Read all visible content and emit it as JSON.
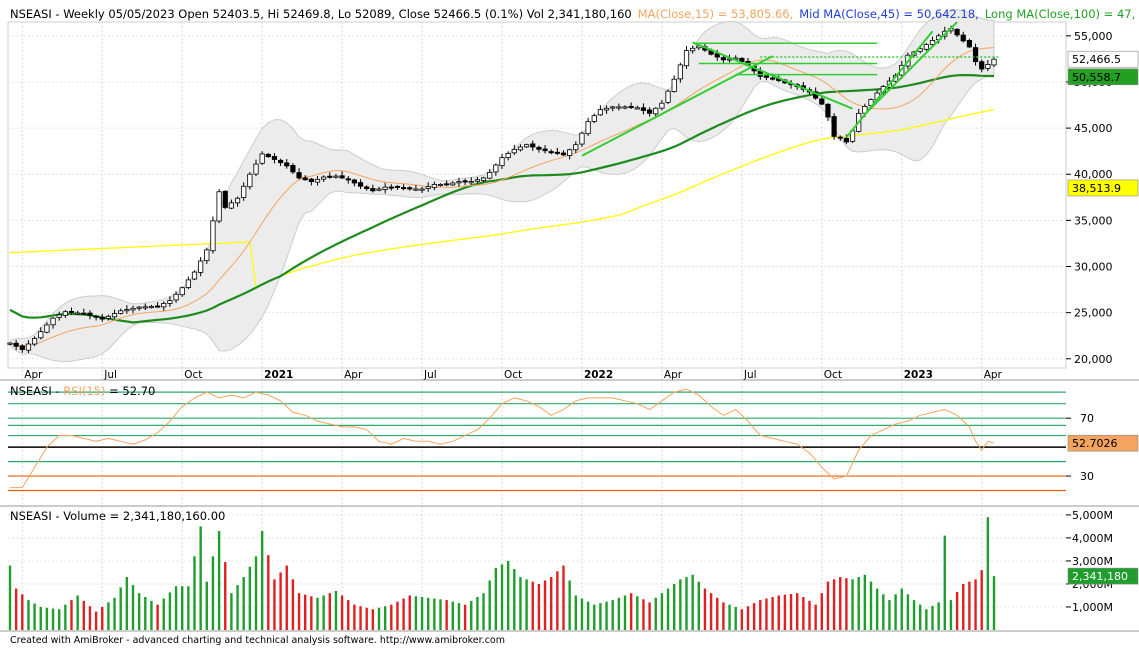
{
  "chart_data": {
    "type": "candlestick",
    "symbol": "NSEASI",
    "price_panel": {
      "title": {
        "text": "NSEASI - Weekly 05/05/2023 Open 52403.5, Hi 52469.8, Lo 52089, Close 52466.5 (0.1%) Vol 2,341,180,160",
        "ma15": "MA(Close,15) = 53,805.66,",
        "ma45": "Mid MA(Close,45) = 50,642.18,",
        "ma100": "Long MA(Close,100) = 47,"
      },
      "ylim": [
        19000,
        56500
      ],
      "y_ticks": [
        20000,
        25000,
        30000,
        35000,
        40000,
        45000,
        50000,
        55000
      ],
      "y_tick_labels": [
        "20,000",
        "25,000",
        "30,000",
        "35,000",
        "40,000",
        "45,000",
        "50,000",
        "55,000"
      ],
      "value_tags": [
        {
          "label": "52,466.5",
          "value": 52466.5,
          "color": "#ffffff",
          "text_color": "#000000"
        },
        {
          "label": "50,558.7",
          "value": 50558.7,
          "color": "#23a023",
          "text_color": "#000000"
        },
        {
          "label": "38,513.9",
          "value": 38513.9,
          "color": "#ffff00",
          "text_color": "#000000"
        }
      ]
    },
    "x_labels": [
      {
        "week": 2,
        "label": "Apr",
        "bold": false
      },
      {
        "week": 15,
        "label": "Jul",
        "bold": false
      },
      {
        "week": 28,
        "label": "Oct",
        "bold": false
      },
      {
        "week": 41,
        "label": "2021",
        "bold": true
      },
      {
        "week": 54,
        "label": "Apr",
        "bold": false
      },
      {
        "week": 67,
        "label": "Jul",
        "bold": false
      },
      {
        "week": 80,
        "label": "Oct",
        "bold": false
      },
      {
        "week": 93,
        "label": "2022",
        "bold": true
      },
      {
        "week": 106,
        "label": "Apr",
        "bold": false
      },
      {
        "week": 119,
        "label": "Jul",
        "bold": false
      },
      {
        "week": 132,
        "label": "Oct",
        "bold": false
      },
      {
        "week": 145,
        "label": "2023",
        "bold": true
      },
      {
        "week": 158,
        "label": "Apr",
        "bold": false
      }
    ],
    "close_anchors": [
      [
        0,
        21700
      ],
      [
        2,
        21000
      ],
      [
        4,
        22200
      ],
      [
        7,
        24400
      ],
      [
        9,
        25100
      ],
      [
        12,
        24900
      ],
      [
        15,
        24300
      ],
      [
        18,
        25200
      ],
      [
        21,
        25600
      ],
      [
        24,
        25700
      ],
      [
        26,
        26300
      ],
      [
        28,
        27700
      ],
      [
        30,
        29400
      ],
      [
        32,
        31800
      ],
      [
        34,
        38100
      ],
      [
        35,
        36400
      ],
      [
        37,
        37400
      ],
      [
        39,
        40000
      ],
      [
        41,
        42200
      ],
      [
        43,
        41600
      ],
      [
        45,
        40900
      ],
      [
        47,
        39600
      ],
      [
        49,
        39200
      ],
      [
        51,
        39700
      ],
      [
        53,
        39800
      ],
      [
        55,
        39400
      ],
      [
        57,
        38700
      ],
      [
        59,
        38200
      ],
      [
        61,
        38600
      ],
      [
        63,
        38600
      ],
      [
        65,
        38400
      ],
      [
        67,
        38400
      ],
      [
        69,
        38900
      ],
      [
        71,
        38900
      ],
      [
        73,
        39200
      ],
      [
        75,
        39200
      ],
      [
        77,
        39600
      ],
      [
        78,
        40200
      ],
      [
        80,
        41800
      ],
      [
        82,
        42700
      ],
      [
        84,
        43200
      ],
      [
        86,
        42700
      ],
      [
        88,
        42400
      ],
      [
        90,
        42100
      ],
      [
        92,
        43200
      ],
      [
        94,
        45700
      ],
      [
        96,
        47000
      ],
      [
        98,
        47300
      ],
      [
        100,
        47300
      ],
      [
        102,
        47200
      ],
      [
        104,
        46600
      ],
      [
        106,
        47700
      ],
      [
        108,
        50300
      ],
      [
        110,
        53400
      ],
      [
        112,
        53900
      ],
      [
        114,
        53000
      ],
      [
        116,
        52400
      ],
      [
        118,
        52600
      ],
      [
        120,
        51800
      ],
      [
        122,
        50600
      ],
      [
        124,
        50400
      ],
      [
        126,
        49900
      ],
      [
        128,
        49500
      ],
      [
        130,
        48900
      ],
      [
        132,
        47600
      ],
      [
        133,
        46200
      ],
      [
        134,
        44100
      ],
      [
        135,
        43900
      ],
      [
        136,
        43500
      ],
      [
        137,
        44700
      ],
      [
        138,
        46600
      ],
      [
        140,
        48100
      ],
      [
        142,
        49500
      ],
      [
        144,
        50700
      ],
      [
        146,
        52900
      ],
      [
        148,
        53600
      ],
      [
        150,
        54500
      ],
      [
        152,
        55500
      ],
      [
        153,
        55800
      ],
      [
        154,
        55100
      ],
      [
        156,
        53800
      ],
      [
        157,
        52200
      ],
      [
        158,
        51400
      ],
      [
        159,
        51900
      ],
      [
        160,
        52466.5
      ]
    ],
    "volume_panel": {
      "title": "NSEASI - Volume = 2,341,180,160.00",
      "ylim": [
        0,
        5300000000
      ],
      "y_ticks": [
        1000000000,
        2000000000,
        3000000000,
        4000000000,
        5000000000
      ],
      "y_tick_labels": [
        "1,000M",
        "2,000M",
        "3,000M",
        "4,000M",
        "5,000M"
      ],
      "value_tag": {
        "label": "2,341,180",
        "value": 2341180160
      },
      "volume_anchors": [
        [
          0,
          2800
        ],
        [
          1,
          1800
        ],
        [
          3,
          1300
        ],
        [
          5,
          1000
        ],
        [
          8,
          900
        ],
        [
          11,
          1500
        ],
        [
          14,
          800
        ],
        [
          17,
          1400
        ],
        [
          19,
          2300
        ],
        [
          21,
          1600
        ],
        [
          24,
          1100
        ],
        [
          27,
          1900
        ],
        [
          29,
          1900
        ],
        [
          31,
          4500
        ],
        [
          32,
          2100
        ],
        [
          34,
          4300
        ],
        [
          36,
          1600
        ],
        [
          38,
          2300
        ],
        [
          40,
          3200
        ],
        [
          41,
          4300
        ],
        [
          43,
          2200
        ],
        [
          45,
          2800
        ],
        [
          47,
          1600
        ],
        [
          50,
          1400
        ],
        [
          53,
          1700
        ],
        [
          56,
          1100
        ],
        [
          59,
          900
        ],
        [
          62,
          1100
        ],
        [
          65,
          1500
        ],
        [
          68,
          1400
        ],
        [
          71,
          1300
        ],
        [
          74,
          1100
        ],
        [
          77,
          1600
        ],
        [
          79,
          2700
        ],
        [
          81,
          3000
        ],
        [
          83,
          2300
        ],
        [
          86,
          2000
        ],
        [
          88,
          2300
        ],
        [
          90,
          2800
        ],
        [
          92,
          1500
        ],
        [
          95,
          1100
        ],
        [
          98,
          1300
        ],
        [
          101,
          1600
        ],
        [
          104,
          1200
        ],
        [
          107,
          1800
        ],
        [
          109,
          2200
        ],
        [
          111,
          2400
        ],
        [
          113,
          1800
        ],
        [
          116,
          1200
        ],
        [
          119,
          900
        ],
        [
          122,
          1300
        ],
        [
          125,
          1500
        ],
        [
          128,
          1600
        ],
        [
          131,
          1100
        ],
        [
          133,
          2100
        ],
        [
          135,
          2300
        ],
        [
          137,
          2200
        ],
        [
          139,
          2400
        ],
        [
          141,
          1800
        ],
        [
          143,
          1300
        ],
        [
          145,
          1800
        ],
        [
          147,
          1300
        ],
        [
          149,
          900
        ],
        [
          151,
          1200
        ],
        [
          152,
          4100
        ],
        [
          153,
          1300
        ],
        [
          155,
          2000
        ],
        [
          157,
          2200
        ],
        [
          158,
          2600
        ],
        [
          159,
          4900
        ],
        [
          160,
          2341
        ]
      ]
    },
    "rsi_panel": {
      "title_prefix": "NSEASI - ",
      "title_indicator": "RSI(15)",
      "title_value": " = 52.70",
      "ylim": [
        10,
        95
      ],
      "y_ticks": [
        30,
        70
      ],
      "y_tick_labels": [
        "30",
        "70"
      ],
      "levels": [
        {
          "value": 88,
          "color": "#2eab6a"
        },
        {
          "value": 80,
          "color": "#2eab6a"
        },
        {
          "value": 70,
          "color": "#2eab6a"
        },
        {
          "value": 65,
          "color": "#2eab6a"
        },
        {
          "value": 58,
          "color": "#2eab6a"
        },
        {
          "value": 50,
          "color": "#000000"
        },
        {
          "value": 40,
          "color": "#2eab6a"
        },
        {
          "value": 30,
          "color": "#e8600a"
        },
        {
          "value": 20,
          "color": "#e8600a"
        }
      ],
      "value_tag": {
        "label": "52.7026",
        "value": 52.7026
      },
      "rsi_anchors": [
        [
          0,
          22
        ],
        [
          2,
          22
        ],
        [
          4,
          36
        ],
        [
          6,
          50
        ],
        [
          8,
          58
        ],
        [
          10,
          58
        ],
        [
          12,
          56
        ],
        [
          14,
          54
        ],
        [
          16,
          56
        ],
        [
          18,
          54
        ],
        [
          20,
          52
        ],
        [
          22,
          55
        ],
        [
          24,
          60
        ],
        [
          26,
          68
        ],
        [
          28,
          78
        ],
        [
          30,
          84
        ],
        [
          32,
          88
        ],
        [
          34,
          84
        ],
        [
          36,
          86
        ],
        [
          38,
          84
        ],
        [
          40,
          88
        ],
        [
          42,
          86
        ],
        [
          44,
          82
        ],
        [
          46,
          74
        ],
        [
          48,
          72
        ],
        [
          50,
          68
        ],
        [
          52,
          66
        ],
        [
          54,
          64
        ],
        [
          56,
          64
        ],
        [
          58,
          62
        ],
        [
          60,
          54
        ],
        [
          62,
          52
        ],
        [
          64,
          56
        ],
        [
          66,
          54
        ],
        [
          68,
          54
        ],
        [
          70,
          52
        ],
        [
          72,
          54
        ],
        [
          74,
          58
        ],
        [
          76,
          62
        ],
        [
          78,
          70
        ],
        [
          80,
          80
        ],
        [
          82,
          84
        ],
        [
          84,
          82
        ],
        [
          86,
          78
        ],
        [
          88,
          72
        ],
        [
          90,
          76
        ],
        [
          92,
          82
        ],
        [
          94,
          84
        ],
        [
          96,
          84
        ],
        [
          98,
          84
        ],
        [
          100,
          82
        ],
        [
          102,
          80
        ],
        [
          104,
          76
        ],
        [
          106,
          82
        ],
        [
          108,
          88
        ],
        [
          110,
          90
        ],
        [
          112,
          86
        ],
        [
          114,
          78
        ],
        [
          116,
          72
        ],
        [
          118,
          76
        ],
        [
          120,
          68
        ],
        [
          122,
          58
        ],
        [
          124,
          56
        ],
        [
          126,
          54
        ],
        [
          128,
          52
        ],
        [
          130,
          46
        ],
        [
          132,
          36
        ],
        [
          134,
          28
        ],
        [
          136,
          30
        ],
        [
          138,
          48
        ],
        [
          140,
          58
        ],
        [
          142,
          62
        ],
        [
          144,
          66
        ],
        [
          146,
          68
        ],
        [
          148,
          72
        ],
        [
          150,
          74
        ],
        [
          152,
          76
        ],
        [
          154,
          72
        ],
        [
          156,
          64
        ],
        [
          157,
          54
        ],
        [
          158,
          48
        ],
        [
          159,
          54
        ],
        [
          160,
          52.7
        ]
      ]
    },
    "trend_lines": [
      {
        "x1": 111,
        "y1": 54200,
        "x2": 141,
        "y2": 54200,
        "width": 1.5
      },
      {
        "x1": 112,
        "y1": 52000,
        "x2": 141,
        "y2": 52000,
        "width": 1.5
      },
      {
        "x1": 118,
        "y1": 50800,
        "x2": 141,
        "y2": 50800,
        "width": 1.5
      },
      {
        "x1": 93,
        "y1": 42000,
        "x2": 124,
        "y2": 52800,
        "width": 2
      },
      {
        "x1": 111,
        "y1": 54300,
        "x2": 137,
        "y2": 47100,
        "width": 2
      },
      {
        "x1": 136,
        "y1": 44000,
        "x2": 150,
        "y2": 55500,
        "width": 2
      },
      {
        "x1": 139,
        "y1": 46500,
        "x2": 154,
        "y2": 56500,
        "width": 2
      }
    ],
    "dotted_line": {
      "x1": 122,
      "y1": 52700,
      "x2": 161,
      "y2": 52700
    },
    "footer": "Created with AmiBroker - advanced charting and technical analysis software. http://www.amibroker.com"
  }
}
